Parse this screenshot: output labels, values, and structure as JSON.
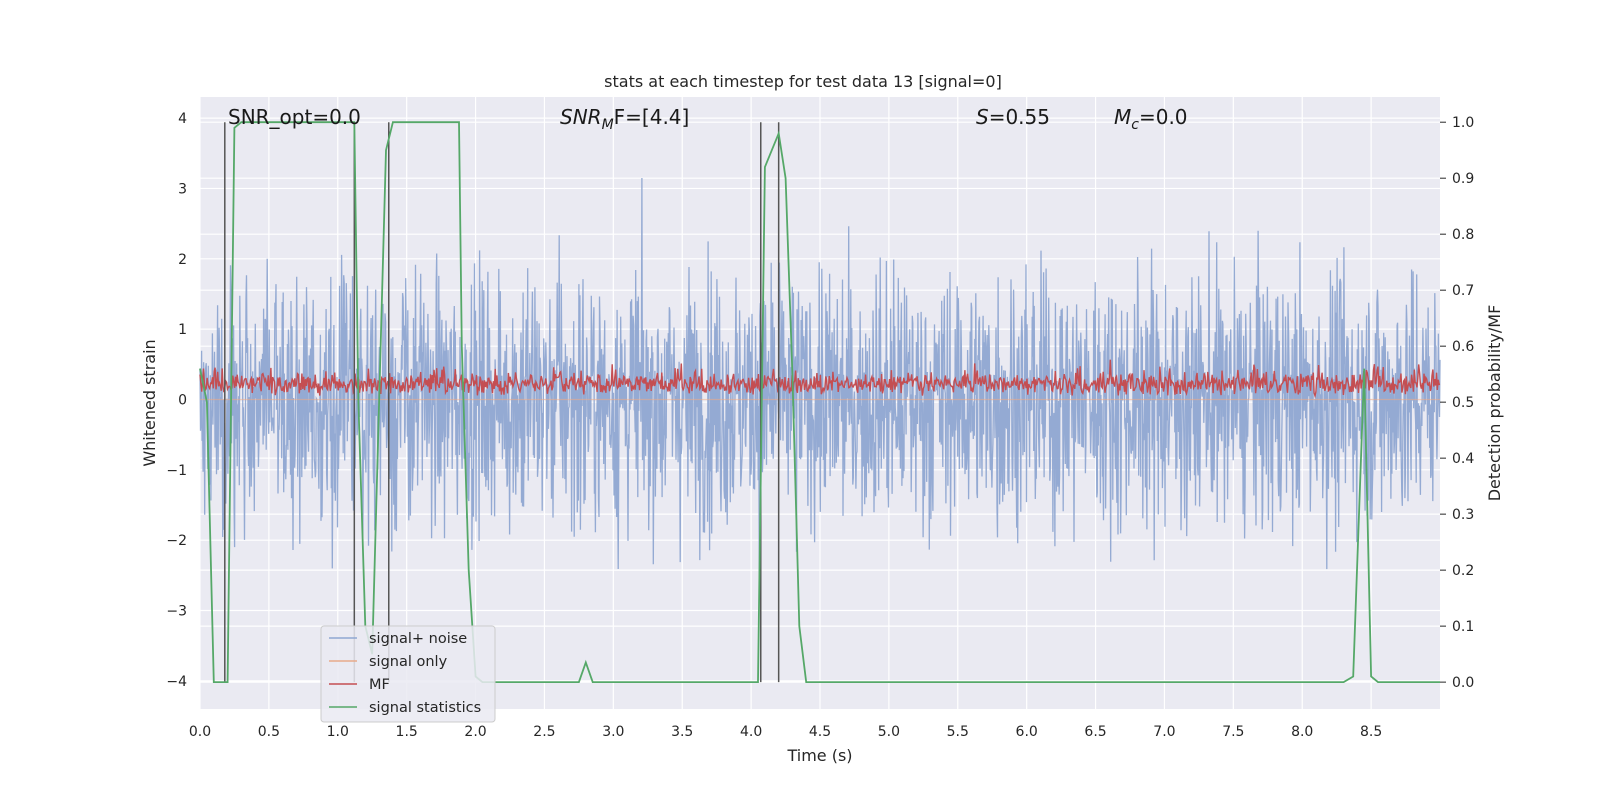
{
  "chart_data": {
    "type": "line",
    "title": "stats at each timestep for test data 13 [signal=0]",
    "xlabel": "Time (s)",
    "ylabel_left": "Whitened strain",
    "ylabel_right": "Detection probability/MF",
    "xlim": [
      0,
      9
    ],
    "ylim_left": [
      -4.4,
      4.3
    ],
    "ylim_right": [
      -0.048,
      1.045
    ],
    "xticks": [
      0.0,
      0.5,
      1.0,
      1.5,
      2.0,
      2.5,
      3.0,
      3.5,
      4.0,
      4.5,
      5.0,
      5.5,
      6.0,
      6.5,
      7.0,
      7.5,
      8.0,
      8.5
    ],
    "xtick_labels": [
      "0.0",
      "0.5",
      "1.0",
      "1.5",
      "2.0",
      "2.5",
      "3.0",
      "3.5",
      "4.0",
      "4.5",
      "5.0",
      "5.5",
      "6.0",
      "6.5",
      "7.0",
      "7.5",
      "8.0",
      "8.5"
    ],
    "yticks_left": [
      4,
      3,
      2,
      1,
      0,
      -1,
      -2,
      -3,
      -4
    ],
    "yticks_left_labels": [
      "4",
      "3",
      "2",
      "1",
      "0",
      "−1",
      "−2",
      "−3",
      "−4"
    ],
    "yticks_right": [
      1.0,
      0.9,
      0.8,
      0.7,
      0.6,
      0.5,
      0.4,
      0.3,
      0.2,
      0.1,
      0.0
    ],
    "yticks_right_labels": [
      "1.0",
      "0.9",
      "0.8",
      "0.7",
      "0.6",
      "0.5",
      "0.4",
      "0.3",
      "0.2",
      "0.1",
      "0.0"
    ],
    "grid": true,
    "legend_position": "lower-left",
    "annotations": {
      "snr_opt": "SNR_opt=0.0",
      "snr_mf_main": "SNR",
      "snr_mf_sub": "M",
      "snr_mf_rest": "F=[4.4]",
      "s_main": "S",
      "s_rest": "=0.55",
      "mc_main": "M",
      "mc_sub": "c",
      "mc_rest": "=0.0"
    },
    "series": [
      {
        "name": "signal+ noise",
        "color": "#8fa7d1",
        "description_values": "noise-like whitened strain, approx range [-4.0, 4.0]"
      },
      {
        "name": "signal only",
        "color": "#e8a98a",
        "values": "flat at 0 (no signal)"
      },
      {
        "name": "MF",
        "color": "#c44e52",
        "description_values": "matched filter output approx 0.5 to 0.6 (right axis)"
      },
      {
        "name": "signal statistics",
        "color": "#55a868",
        "x": [
          0.0,
          0.05,
          0.1,
          0.12,
          0.18,
          0.2,
          0.25,
          0.3,
          0.35,
          0.4,
          1.0,
          1.1,
          1.12,
          1.15,
          1.2,
          1.25,
          1.3,
          1.35,
          1.4,
          1.45,
          1.5,
          1.85,
          1.88,
          1.9,
          1.95,
          2.0,
          2.05,
          2.1,
          2.7,
          2.75,
          2.8,
          2.85,
          2.9,
          4.05,
          4.1,
          4.15,
          4.2,
          4.25,
          4.3,
          4.35,
          4.4,
          8.3,
          8.37,
          8.45,
          8.5,
          8.55,
          9.0
        ],
        "y": [
          0.56,
          0.5,
          0.0,
          0.0,
          0.0,
          0.0,
          0.99,
          1.0,
          1.0,
          1.0,
          1.0,
          1.0,
          1.0,
          0.5,
          0.1,
          0.05,
          0.5,
          0.95,
          1.0,
          1.0,
          1.0,
          1.0,
          1.0,
          0.6,
          0.2,
          0.01,
          0.0,
          0.0,
          0.0,
          0.0,
          0.035,
          0.0,
          0.0,
          0.0,
          0.92,
          0.95,
          0.98,
          0.9,
          0.55,
          0.1,
          0.0,
          0.0,
          0.01,
          0.56,
          0.01,
          0.0,
          0.0
        ]
      }
    ],
    "vertical_lines_x": [
      0.18,
      1.12,
      1.37,
      4.07,
      4.2
    ]
  }
}
